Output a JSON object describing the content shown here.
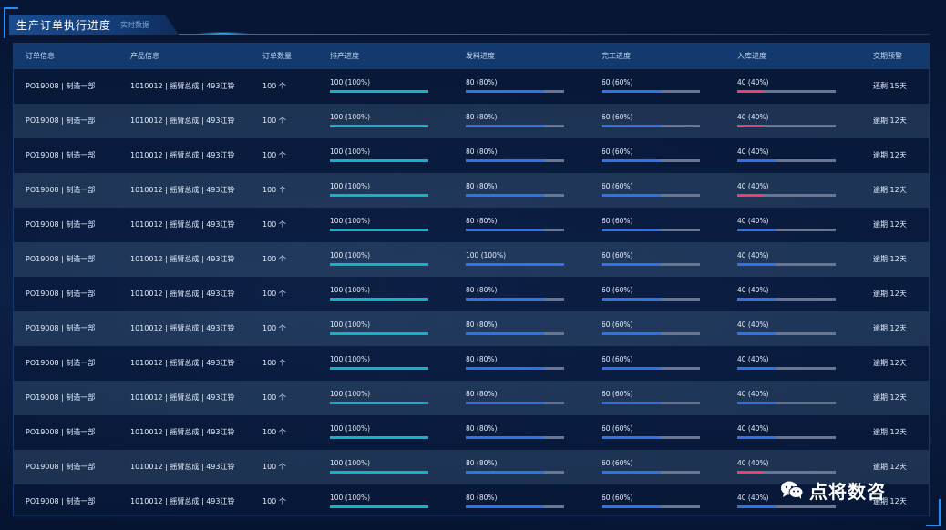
{
  "header": {
    "title": "生产订单执行进度",
    "subtitle": "实时数据"
  },
  "columns": [
    "订单信息",
    "产品信息",
    "订单数量",
    "排产进度",
    "发料进度",
    "完工进度",
    "入库进度",
    "交期预警"
  ],
  "colors": {
    "schedule": "#12b3c7",
    "material": "#2f74e6",
    "completion": "#2f74e6",
    "warehouse_normal": "#2f74e6",
    "warehouse_alert": "#e8416b",
    "track": "#6a7690"
  },
  "rows": [
    {
      "order": "PO19008 | 制造一部",
      "product": "1010012 | 摇臂总成 | 493江铃",
      "qty": "100 个",
      "schedule": {
        "label": "100 (100%)",
        "pct": 100
      },
      "material": {
        "label": "80 (80%)",
        "pct": 80
      },
      "completion": {
        "label": "60 (60%)",
        "pct": 60
      },
      "warehouse": {
        "label": "40 (40%)",
        "pct": 40,
        "alert": true
      },
      "due": "还剩 15天"
    },
    {
      "order": "PO19008 | 制造一部",
      "product": "1010012 | 摇臂总成 | 493江铃",
      "qty": "100 个",
      "schedule": {
        "label": "100 (100%)",
        "pct": 100
      },
      "material": {
        "label": "80 (80%)",
        "pct": 80
      },
      "completion": {
        "label": "60 (60%)",
        "pct": 60
      },
      "warehouse": {
        "label": "40 (40%)",
        "pct": 40,
        "alert": true
      },
      "due": "逾期 12天"
    },
    {
      "order": "PO19008 | 制造一部",
      "product": "1010012 | 摇臂总成 | 493江铃",
      "qty": "100 个",
      "schedule": {
        "label": "100 (100%)",
        "pct": 100
      },
      "material": {
        "label": "80 (80%)",
        "pct": 80
      },
      "completion": {
        "label": "60 (60%)",
        "pct": 60
      },
      "warehouse": {
        "label": "40 (40%)",
        "pct": 40,
        "alert": false
      },
      "due": "逾期 12天"
    },
    {
      "order": "PO19008 | 制造一部",
      "product": "1010012 | 摇臂总成 | 493江铃",
      "qty": "100 个",
      "schedule": {
        "label": "100 (100%)",
        "pct": 100
      },
      "material": {
        "label": "80 (80%)",
        "pct": 80
      },
      "completion": {
        "label": "60 (60%)",
        "pct": 60
      },
      "warehouse": {
        "label": "40 (40%)",
        "pct": 40,
        "alert": true
      },
      "due": "逾期 12天"
    },
    {
      "order": "PO19008 | 制造一部",
      "product": "1010012 | 摇臂总成 | 493江铃",
      "qty": "100 个",
      "schedule": {
        "label": "100 (100%)",
        "pct": 100
      },
      "material": {
        "label": "80 (80%)",
        "pct": 80
      },
      "completion": {
        "label": "60 (60%)",
        "pct": 60
      },
      "warehouse": {
        "label": "40 (40%)",
        "pct": 40,
        "alert": false
      },
      "due": "逾期 12天"
    },
    {
      "order": "PO19008 | 制造一部",
      "product": "1010012 | 摇臂总成 | 493江铃",
      "qty": "100 个",
      "schedule": {
        "label": "100 (100%)",
        "pct": 100
      },
      "material": {
        "label": "100 (100%)",
        "pct": 100
      },
      "completion": {
        "label": "60 (60%)",
        "pct": 60
      },
      "warehouse": {
        "label": "40 (40%)",
        "pct": 40,
        "alert": false
      },
      "due": "逾期 12天"
    },
    {
      "order": "PO19008 | 制造一部",
      "product": "1010012 | 摇臂总成 | 493江铃",
      "qty": "100 个",
      "schedule": {
        "label": "100 (100%)",
        "pct": 100
      },
      "material": {
        "label": "80 (80%)",
        "pct": 80
      },
      "completion": {
        "label": "60 (60%)",
        "pct": 60
      },
      "warehouse": {
        "label": "40 (40%)",
        "pct": 40,
        "alert": false
      },
      "due": "逾期 12天"
    },
    {
      "order": "PO19008 | 制造一部",
      "product": "1010012 | 摇臂总成 | 493江铃",
      "qty": "100 个",
      "schedule": {
        "label": "100 (100%)",
        "pct": 100
      },
      "material": {
        "label": "80 (80%)",
        "pct": 80
      },
      "completion": {
        "label": "60 (60%)",
        "pct": 60
      },
      "warehouse": {
        "label": "40 (40%)",
        "pct": 40,
        "alert": false
      },
      "due": "逾期 12天"
    },
    {
      "order": "PO19008 | 制造一部",
      "product": "1010012 | 摇臂总成 | 493江铃",
      "qty": "100 个",
      "schedule": {
        "label": "100 (100%)",
        "pct": 100
      },
      "material": {
        "label": "80 (80%)",
        "pct": 80
      },
      "completion": {
        "label": "60 (60%)",
        "pct": 60
      },
      "warehouse": {
        "label": "40 (40%)",
        "pct": 40,
        "alert": false
      },
      "due": "逾期 12天"
    },
    {
      "order": "PO19008 | 制造一部",
      "product": "1010012 | 摇臂总成 | 493江铃",
      "qty": "100 个",
      "schedule": {
        "label": "100 (100%)",
        "pct": 100
      },
      "material": {
        "label": "80 (80%)",
        "pct": 80
      },
      "completion": {
        "label": "60 (60%)",
        "pct": 60
      },
      "warehouse": {
        "label": "40 (40%)",
        "pct": 40,
        "alert": false
      },
      "due": "逾期 12天"
    },
    {
      "order": "PO19008 | 制造一部",
      "product": "1010012 | 摇臂总成 | 493江铃",
      "qty": "100 个",
      "schedule": {
        "label": "100 (100%)",
        "pct": 100
      },
      "material": {
        "label": "80 (80%)",
        "pct": 80
      },
      "completion": {
        "label": "60 (60%)",
        "pct": 60
      },
      "warehouse": {
        "label": "40 (40%)",
        "pct": 40,
        "alert": false
      },
      "due": "逾期 12天"
    },
    {
      "order": "PO19008 | 制造一部",
      "product": "1010012 | 摇臂总成 | 493江铃",
      "qty": "100 个",
      "schedule": {
        "label": "100 (100%)",
        "pct": 100
      },
      "material": {
        "label": "80 (80%)",
        "pct": 80
      },
      "completion": {
        "label": "60 (60%)",
        "pct": 60
      },
      "warehouse": {
        "label": "40 (40%)",
        "pct": 40,
        "alert": true
      },
      "due": "逾期 12天"
    },
    {
      "order": "PO19008 | 制造一部",
      "product": "1010012 | 摇臂总成 | 493江铃",
      "qty": "100 个",
      "schedule": {
        "label": "100 (100%)",
        "pct": 100
      },
      "material": {
        "label": "80 (80%)",
        "pct": 80
      },
      "completion": {
        "label": "60 (60%)",
        "pct": 60
      },
      "warehouse": {
        "label": "40 (40%)",
        "pct": 40,
        "alert": false
      },
      "due": "逾期 12天"
    }
  ],
  "watermark": {
    "text": "点将数咨",
    "icon": "wechat-icon"
  }
}
